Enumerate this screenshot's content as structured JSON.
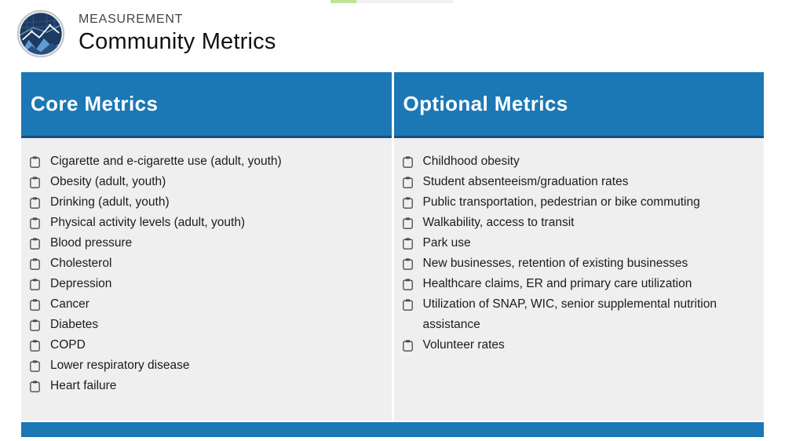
{
  "accent_colors": {
    "primary_blue": "#1b78b5",
    "header_edge_blue": "#15507c",
    "panel_gray": "#efefef",
    "progress_green": "#bfe298",
    "progress_track_gray": "#f1f1f1"
  },
  "progress": {
    "completed_ratio": 0.21
  },
  "brand": {
    "eyebrow": "MEASUREMENT",
    "title": "Community Metrics",
    "logo_icon": "analytics-chart-logo"
  },
  "table": {
    "bullet_icon": "clipboard-icon",
    "columns": [
      {
        "header": "Core Metrics",
        "items": [
          "Cigarette and e-cigarette use (adult, youth)",
          "Obesity (adult, youth)",
          "Drinking (adult, youth)",
          "Physical activity levels (adult, youth)",
          "Blood pressure",
          "Cholesterol",
          "Depression",
          "Cancer",
          "Diabetes",
          "COPD",
          "Lower respiratory disease",
          "Heart failure"
        ]
      },
      {
        "header": "Optional Metrics",
        "items": [
          "Childhood obesity",
          "Student absenteeism/graduation rates",
          "Public transportation, pedestrian or bike commuting",
          "Walkability, access to transit",
          "Park use",
          "New businesses, retention of existing businesses",
          "Healthcare claims, ER and primary care utilization",
          "Utilization of SNAP, WIC, senior supplemental nutrition assistance",
          "Volunteer rates"
        ]
      }
    ]
  }
}
